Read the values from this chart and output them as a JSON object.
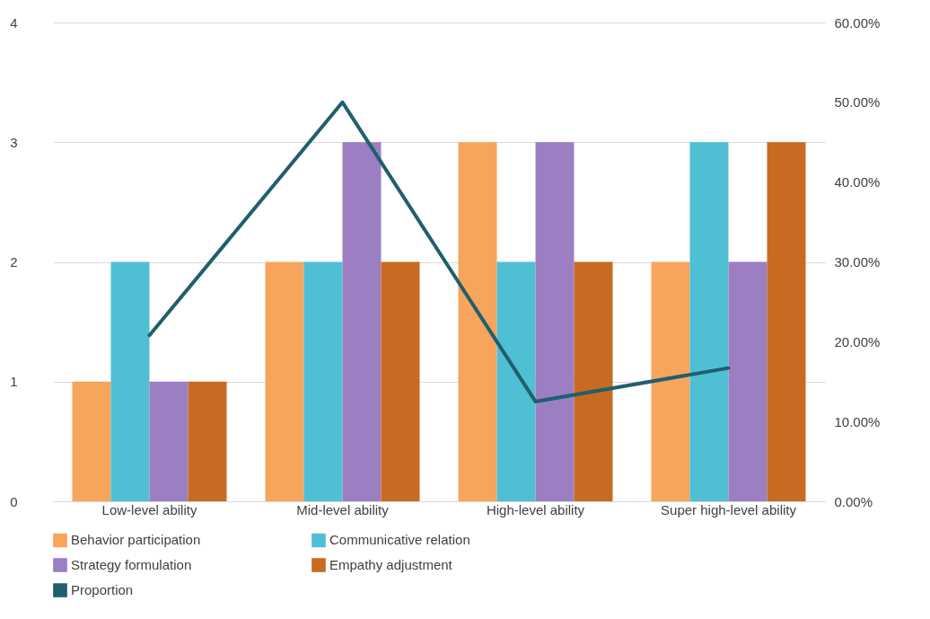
{
  "chart_data": {
    "type": "bar",
    "categories": [
      "Low-level ability",
      "Mid-level ability",
      "High-level ability",
      "Super high-level ability"
    ],
    "series": [
      {
        "name": "Behavior participation",
        "color": "#f7a45c",
        "values": [
          1,
          2,
          3,
          2
        ]
      },
      {
        "name": "Communicative relation",
        "color": "#4fbfd3",
        "values": [
          2,
          2,
          2,
          3
        ]
      },
      {
        "name": "Strategy formulation",
        "color": "#9b7fc2",
        "values": [
          1,
          3,
          3,
          2
        ]
      },
      {
        "name": "Empathy adjustment",
        "color": "#c96a22",
        "values": [
          1,
          2,
          2,
          3
        ]
      },
      {
        "name": "Proportion",
        "type": "line",
        "axis": "y2",
        "color": "#1f5f6e",
        "values": [
          20.8,
          50,
          12.5,
          16.7
        ],
        "marker": "none",
        "line_style": "solid"
      }
    ],
    "ylim": [
      0,
      4
    ],
    "yticks": [
      0,
      1,
      2,
      3,
      4
    ],
    "y2lim": [
      0,
      60
    ],
    "y2ticks": [
      {
        "value": 0,
        "label": "0.00%"
      },
      {
        "value": 10,
        "label": "10.00%"
      },
      {
        "value": 20,
        "label": "20.00%"
      },
      {
        "value": 30,
        "label": "30.00%"
      },
      {
        "value": 40,
        "label": "40.00%"
      },
      {
        "value": 50,
        "label": "50.00%"
      },
      {
        "value": 60,
        "label": "60.00%"
      }
    ],
    "grid": "y",
    "legend": "bottom"
  }
}
